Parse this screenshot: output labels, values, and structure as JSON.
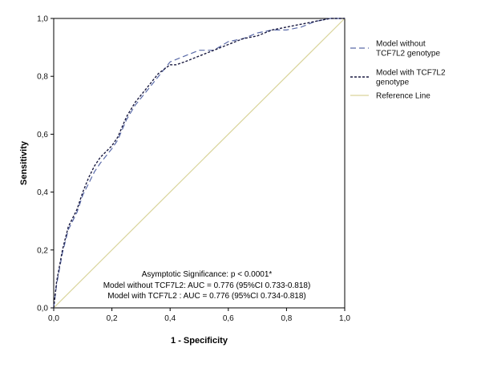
{
  "chart_data": {
    "type": "line",
    "xlabel": "1 - Specificity",
    "ylabel": "Sensitivity",
    "xlim": [
      0,
      1
    ],
    "ylim": [
      0,
      1
    ],
    "x_ticks": [
      "0,0",
      "0,2",
      "0,4",
      "0,6",
      "0,8",
      "1,0"
    ],
    "y_ticks": [
      "0,0",
      "0,2",
      "0,4",
      "0,6",
      "0,8",
      "1,0"
    ],
    "grid": false,
    "legend_position": "right",
    "series": [
      {
        "name": "Model without TCF7L2 genotype",
        "color": "#5a6aa8",
        "dash": "long",
        "x": [
          0,
          0.01,
          0.03,
          0.05,
          0.08,
          0.1,
          0.12,
          0.14,
          0.16,
          0.2,
          0.22,
          0.25,
          0.28,
          0.32,
          0.36,
          0.4,
          0.45,
          0.5,
          0.55,
          0.6,
          0.65,
          0.7,
          0.75,
          0.8,
          0.85,
          0.9,
          0.95,
          1.0
        ],
        "y": [
          0,
          0.08,
          0.19,
          0.27,
          0.33,
          0.39,
          0.43,
          0.47,
          0.5,
          0.55,
          0.58,
          0.65,
          0.7,
          0.75,
          0.8,
          0.85,
          0.87,
          0.89,
          0.89,
          0.92,
          0.93,
          0.95,
          0.96,
          0.96,
          0.97,
          0.99,
          1.0,
          1.0
        ]
      },
      {
        "name": "Model with TCF7L2 genotype",
        "color": "#1a1a40",
        "dash": "short",
        "x": [
          0,
          0.01,
          0.03,
          0.05,
          0.08,
          0.1,
          0.12,
          0.14,
          0.16,
          0.2,
          0.22,
          0.25,
          0.28,
          0.32,
          0.36,
          0.4,
          0.42,
          0.45,
          0.5,
          0.55,
          0.6,
          0.65,
          0.7,
          0.75,
          0.8,
          0.85,
          0.9,
          0.95,
          1.0
        ],
        "y": [
          0,
          0.09,
          0.2,
          0.28,
          0.34,
          0.4,
          0.45,
          0.49,
          0.52,
          0.56,
          0.59,
          0.66,
          0.71,
          0.76,
          0.81,
          0.84,
          0.84,
          0.85,
          0.87,
          0.89,
          0.91,
          0.93,
          0.94,
          0.96,
          0.97,
          0.98,
          0.99,
          1.0,
          1.0
        ]
      },
      {
        "name": "Reference Line",
        "color": "#d9d49a",
        "dash": "solid",
        "x": [
          0,
          1
        ],
        "y": [
          0,
          1
        ]
      }
    ],
    "legend": [
      {
        "lines": [
          "Model without",
          "TCF7L2 genotype"
        ]
      },
      {
        "lines": [
          "Model with TCF7L2",
          "genotype"
        ]
      },
      {
        "lines": [
          "Reference Line"
        ]
      }
    ],
    "annotations": [
      "Asymptotic Significance: p < 0.0001*",
      "Model without TCF7L2:  AUC = 0.776 (95%CI 0.733-0.818)",
      "Model with TCF7L2 :    AUC = 0.776 (95%CI 0.734-0.818)"
    ]
  }
}
